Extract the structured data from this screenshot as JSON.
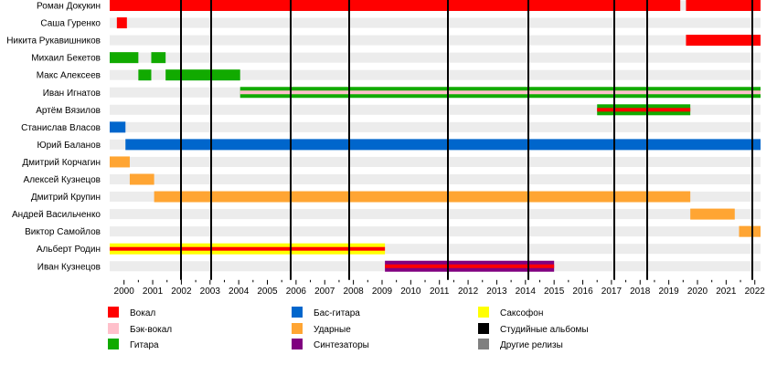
{
  "chart_data": {
    "type": "timeline",
    "title": "",
    "x_range": [
      1999.5,
      2022.2
    ],
    "x_ticks": [
      2000,
      2001,
      2002,
      2003,
      2004,
      2005,
      2006,
      2007,
      2008,
      2009,
      2010,
      2011,
      2012,
      2013,
      2014,
      2015,
      2016,
      2017,
      2018,
      2019,
      2020,
      2021,
      2022
    ],
    "members": [
      {
        "name": "Роман Докукин",
        "periods": [
          {
            "from": 1999.5,
            "to": 2019.4,
            "role": "vocal"
          },
          {
            "from": 2019.6,
            "to": 2022.2,
            "role": "vocal"
          }
        ]
      },
      {
        "name": "Саша Гуренко",
        "periods": [
          {
            "from": 1999.75,
            "to": 2000.1,
            "role": "vocal"
          }
        ]
      },
      {
        "name": "Никита Рукавишников",
        "periods": [
          {
            "from": 2019.6,
            "to": 2022.2,
            "role": "vocal"
          }
        ]
      },
      {
        "name": "Михаил Бекетов",
        "periods": [
          {
            "from": 1999.5,
            "to": 2000.5,
            "role": "guitar"
          },
          {
            "from": 2000.95,
            "to": 2001.45,
            "role": "guitar"
          }
        ]
      },
      {
        "name": "Макс Алексеев",
        "periods": [
          {
            "from": 2000.5,
            "to": 2000.95,
            "role": "guitar"
          },
          {
            "from": 2001.45,
            "to": 2004.05,
            "role": "guitar"
          }
        ]
      },
      {
        "name": "Иван Игнатов",
        "periods": [
          {
            "from": 2004.05,
            "to": 2022.2,
            "role": "guitar",
            "secondary": "backing_vocal"
          }
        ]
      },
      {
        "name": "Артём Вязилов",
        "periods": [
          {
            "from": 2016.5,
            "to": 2019.75,
            "role": "guitar",
            "secondary": "vocal"
          }
        ]
      },
      {
        "name": "Станислав Власов",
        "periods": [
          {
            "from": 1999.5,
            "to": 2000.05,
            "role": "bass"
          }
        ]
      },
      {
        "name": "Юрий Баланов",
        "periods": [
          {
            "from": 2000.05,
            "to": 2022.2,
            "role": "bass"
          }
        ]
      },
      {
        "name": "Дмитрий Корчагин",
        "periods": [
          {
            "from": 1999.5,
            "to": 2000.2,
            "role": "drums"
          }
        ]
      },
      {
        "name": "Алексей Кузнецов",
        "periods": [
          {
            "from": 2000.2,
            "to": 2001.05,
            "role": "drums"
          }
        ]
      },
      {
        "name": "Дмитрий Крупин",
        "periods": [
          {
            "from": 2001.05,
            "to": 2019.75,
            "role": "drums"
          }
        ]
      },
      {
        "name": "Андрей Васильченко",
        "periods": [
          {
            "from": 2019.75,
            "to": 2021.3,
            "role": "drums"
          }
        ]
      },
      {
        "name": "Виктор Самойлов",
        "periods": [
          {
            "from": 2021.45,
            "to": 2022.2,
            "role": "drums"
          }
        ]
      },
      {
        "name": "Альберт Родин",
        "periods": [
          {
            "from": 1999.5,
            "to": 2009.1,
            "role": "sax",
            "secondary": "vocal"
          }
        ]
      },
      {
        "name": "Иван Кузнецов",
        "periods": [
          {
            "from": 2009.1,
            "to": 2015.0,
            "role": "synth",
            "secondary": "vocal"
          }
        ]
      }
    ],
    "studio_albums": [
      2002.0,
      2003.05,
      2005.8,
      2007.85,
      2011.3,
      2014.1,
      2017.1,
      2018.25,
      2021.9
    ]
  },
  "legend": [
    {
      "key": "vocal",
      "label": "Вокал",
      "color": "#ff0000"
    },
    {
      "key": "backing_vocal",
      "label": "Бэк-вокал",
      "color": "#ffc0cb"
    },
    {
      "key": "guitar",
      "label": "Гитара",
      "color": "#11aa00"
    },
    {
      "key": "bass",
      "label": "Бас-гитара",
      "color": "#0066cc"
    },
    {
      "key": "drums",
      "label": "Ударные",
      "color": "#ffa533"
    },
    {
      "key": "synth",
      "label": "Синтезаторы",
      "color": "#800080"
    },
    {
      "key": "sax",
      "label": "Саксофон",
      "color": "#ffff00"
    },
    {
      "key": "albums",
      "label": "Студийные альбомы",
      "color": "#000000"
    },
    {
      "key": "other",
      "label": "Другие релизы",
      "color": "#808080"
    }
  ]
}
